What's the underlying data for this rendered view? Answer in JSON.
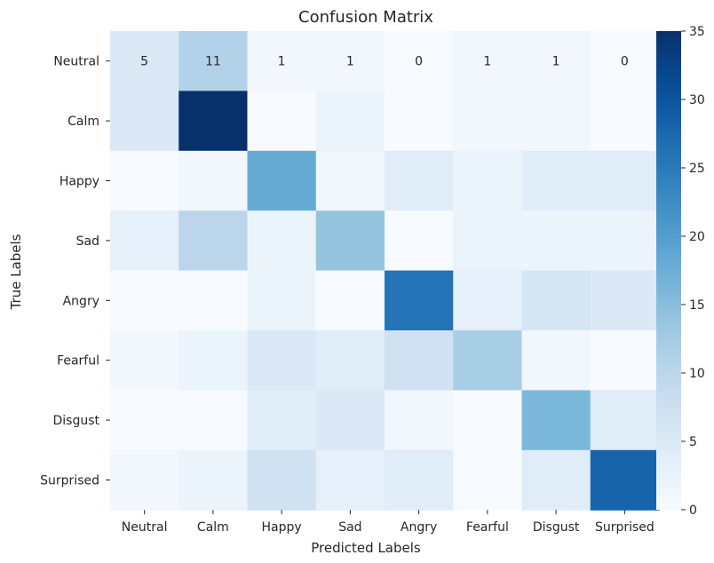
{
  "chart_data": {
    "type": "heatmap",
    "title": "Confusion Matrix",
    "xlabel": "Predicted Labels",
    "ylabel": "True Labels",
    "x_categories": [
      "Neutral",
      "Calm",
      "Happy",
      "Sad",
      "Angry",
      "Fearful",
      "Disgust",
      "Surprised"
    ],
    "y_categories": [
      "Neutral",
      "Calm",
      "Happy",
      "Sad",
      "Angry",
      "Fearful",
      "Disgust",
      "Surprised"
    ],
    "values": [
      [
        5,
        11,
        1,
        1,
        0,
        1,
        1,
        0
      ],
      [
        5,
        35,
        0,
        2,
        0,
        1,
        1,
        0
      ],
      [
        0,
        1,
        18,
        1,
        4,
        2,
        4,
        4
      ],
      [
        3,
        10,
        2,
        14,
        0,
        2,
        2,
        2
      ],
      [
        0,
        0,
        2,
        0,
        26,
        3,
        6,
        5
      ],
      [
        1,
        2,
        5,
        4,
        7,
        12,
        1,
        0
      ],
      [
        0,
        0,
        4,
        5,
        1,
        0,
        16,
        4
      ],
      [
        1,
        2,
        7,
        3,
        4,
        0,
        4,
        28
      ]
    ],
    "annotated_row_labels": [
      "5",
      "11",
      "1",
      "1",
      "0",
      "1",
      "1",
      "0"
    ],
    "colorbar": {
      "min": 0,
      "max": 35,
      "ticks": [
        0,
        5,
        10,
        15,
        20,
        25,
        30,
        35
      ],
      "colormap": "Blues",
      "color_low": "#f7fbff",
      "color_high": "#08306b"
    }
  }
}
